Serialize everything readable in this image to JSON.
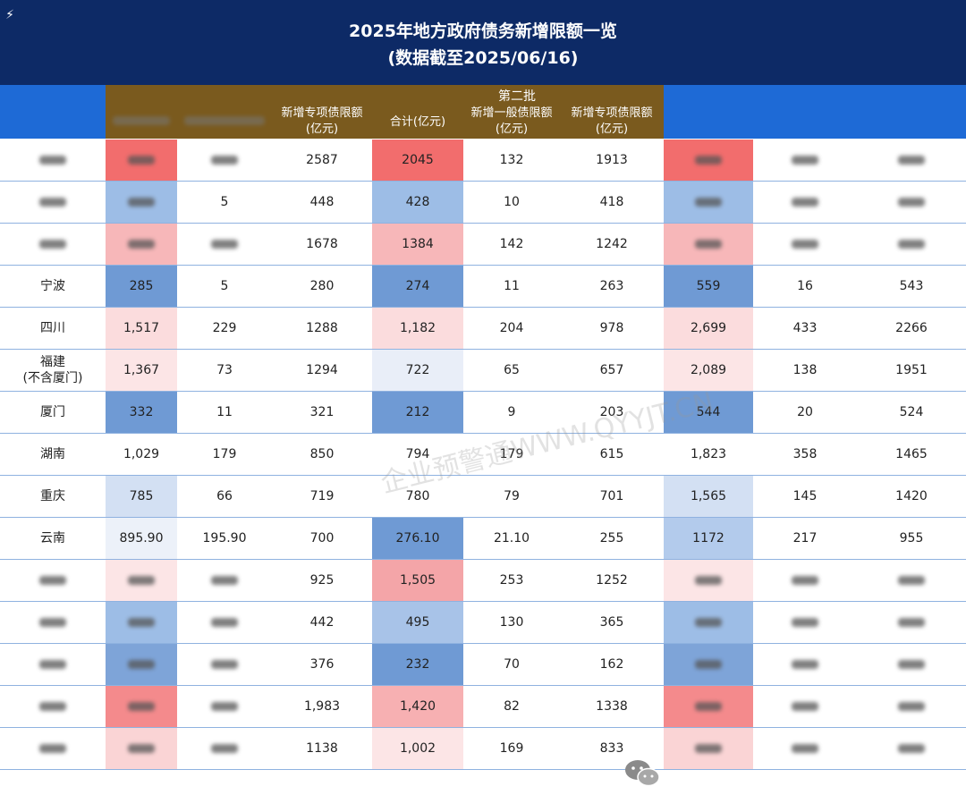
{
  "title": {
    "line1": "2025年地方政府债务新增限额一览",
    "line2": "(数据截至2025/06/16)"
  },
  "header": {
    "batch2_label": "第二批",
    "c0": "",
    "c1": "",
    "c2": "",
    "c3": "新增专项债限额\n(亿元)",
    "c4": "合计(亿元)",
    "c5": "新增一般债限额\n(亿元)",
    "c6": "新增专项债限额\n(亿元)",
    "c7": "",
    "c8": "",
    "c9": ""
  },
  "colors": {
    "title_bg": "#0d2a66",
    "header_bg": "#1e6ad6",
    "header_gold": "#7a5a1e",
    "grid_line": "#8fb2e0"
  },
  "rows": [
    {
      "c0": "",
      "c1": "",
      "c2": "",
      "c3": "2587",
      "c4": "2045",
      "c5": "132",
      "c6": "1913",
      "c7": "",
      "c8": "",
      "c9": "",
      "bg1": "#f26d6d",
      "bg4": "#f26d6d",
      "bg7": "#f26d6d"
    },
    {
      "c0": "",
      "c1": "",
      "c2": "5",
      "c3": "448",
      "c4": "428",
      "c5": "10",
      "c6": "418",
      "c7": "",
      "c8": "",
      "c9": "",
      "bg1": "#9dbde6",
      "bg4": "#9dbde6",
      "bg7": "#9dbde6"
    },
    {
      "c0": "",
      "c1": "",
      "c2": "",
      "c3": "1678",
      "c4": "1384",
      "c5": "142",
      "c6": "1242",
      "c7": "",
      "c8": "",
      "c9": "",
      "bg1": "#f7b7b9",
      "bg4": "#f7b7b9",
      "bg7": "#f7b7b9"
    },
    {
      "c0": "宁波",
      "c1": "285",
      "c2": "5",
      "c3": "280",
      "c4": "274",
      "c5": "11",
      "c6": "263",
      "c7": "559",
      "c8": "16",
      "c9": "543",
      "bg1": "#6f9ad4",
      "bg4": "#6f9ad4",
      "bg7": "#6f9ad4"
    },
    {
      "c0": "四川",
      "c1": "1,517",
      "c2": "229",
      "c3": "1288",
      "c4": "1,182",
      "c5": "204",
      "c6": "978",
      "c7": "2,699",
      "c8": "433",
      "c9": "2266",
      "bg1": "#fbdcdd",
      "bg4": "#fbdcdd",
      "bg7": "#fbdcdd"
    },
    {
      "c0": "福建\n(不含厦门)",
      "c1": "1,367",
      "c2": "73",
      "c3": "1294",
      "c4": "722",
      "c5": "65",
      "c6": "657",
      "c7": "2,089",
      "c8": "138",
      "c9": "1951",
      "bg1": "#fce5e6",
      "bg4": "#e9eef8",
      "bg7": "#fce5e6"
    },
    {
      "c0": "厦门",
      "c1": "332",
      "c2": "11",
      "c3": "321",
      "c4": "212",
      "c5": "9",
      "c6": "203",
      "c7": "544",
      "c8": "20",
      "c9": "524",
      "bg1": "#6f9ad4",
      "bg4": "#6f9ad4",
      "bg7": "#6f9ad4"
    },
    {
      "c0": "湖南",
      "c1": "1,029",
      "c2": "179",
      "c3": "850",
      "c4": "794",
      "c5": "179",
      "c6": "615",
      "c7": "1,823",
      "c8": "358",
      "c9": "1465",
      "bg1": "#ffffff",
      "bg4": "#ffffff",
      "bg7": "#ffffff"
    },
    {
      "c0": "重庆",
      "c1": "785",
      "c2": "66",
      "c3": "719",
      "c4": "780",
      "c5": "79",
      "c6": "701",
      "c7": "1,565",
      "c8": "145",
      "c9": "1420",
      "bg1": "#d3e0f3",
      "bg4": "#ffffff",
      "bg7": "#d3e0f3"
    },
    {
      "c0": "云南",
      "c1": "895.90",
      "c2": "195.90",
      "c3": "700",
      "c4": "276.10",
      "c5": "21.10",
      "c6": "255",
      "c7": "1172",
      "c8": "217",
      "c9": "955",
      "bg1": "#ecf1f9",
      "bg4": "#6f9ad4",
      "bg7": "#b3cbec"
    },
    {
      "c0": "",
      "c1": "",
      "c2": "",
      "c3": "925",
      "c4": "1,505",
      "c5": "253",
      "c6": "1252",
      "c7": "",
      "c8": "",
      "c9": "",
      "bg1": "#fce5e6",
      "bg4": "#f4a5a8",
      "bg7": "#fce5e6"
    },
    {
      "c0": "",
      "c1": "",
      "c2": "",
      "c3": "442",
      "c4": "495",
      "c5": "130",
      "c6": "365",
      "c7": "",
      "c8": "",
      "c9": "",
      "bg1": "#9dbde6",
      "bg4": "#a8c3e8",
      "bg7": "#9dbde6"
    },
    {
      "c0": "",
      "c1": "",
      "c2": "",
      "c3": "376",
      "c4": "232",
      "c5": "70",
      "c6": "162",
      "c7": "",
      "c8": "",
      "c9": "",
      "bg1": "#7ea4d8",
      "bg4": "#6f9ad4",
      "bg7": "#7ea4d8"
    },
    {
      "c0": "",
      "c1": "",
      "c2": "",
      "c3": "1,983",
      "c4": "1,420",
      "c5": "82",
      "c6": "1338",
      "c7": "",
      "c8": "",
      "c9": "",
      "bg1": "#f48a8c",
      "bg4": "#f7b0b2",
      "bg7": "#f48a8c"
    },
    {
      "c0": "",
      "c1": "",
      "c2": "",
      "c3": "1138",
      "c4": "1,002",
      "c5": "169",
      "c6": "833",
      "c7": "",
      "c8": "",
      "c9": "",
      "bg1": "#fad4d5",
      "bg4": "#fce5e6",
      "bg7": "#fad4d5"
    }
  ],
  "watermark": "企业预警通WWW.QYYJT.CN",
  "wechat_icon": "wechat-icon"
}
